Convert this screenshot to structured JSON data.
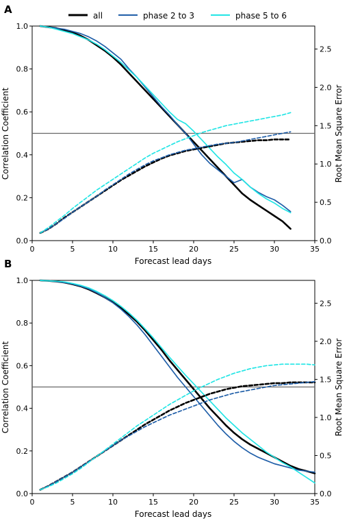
{
  "legend": {
    "placement": "top",
    "entries": [
      {
        "label": "all",
        "color": "#000000"
      },
      {
        "label": "phase 2 to 3",
        "color": "#1f5ea8"
      },
      {
        "label": "phase 5 to 6",
        "color": "#22e5e5"
      }
    ]
  },
  "chart_data": [
    {
      "panel": "A",
      "type": "line",
      "xlabel": "Forecast lead days",
      "ylabel": "Correlation Coefficient",
      "y2label": "Root Mean Square Error",
      "xlim": [
        0,
        35
      ],
      "ylim": [
        0,
        1.0
      ],
      "y2lim": [
        0,
        2.8
      ],
      "xticks": [
        0,
        5,
        10,
        15,
        20,
        25,
        30,
        35
      ],
      "yticks": [
        0.0,
        0.2,
        0.4,
        0.6,
        0.8,
        1.0
      ],
      "y2ticks": [
        0.0,
        0.5,
        1.0,
        1.5,
        2.0,
        2.5
      ],
      "reference_line": {
        "axis": "y",
        "value": 0.5,
        "color": "#666666"
      },
      "series": [
        {
          "name": "all",
          "metric": "correlation",
          "style": "solid",
          "color": "#000000",
          "x": [
            1,
            2,
            3,
            4,
            5,
            6,
            7,
            8,
            9,
            10,
            11,
            12,
            13,
            14,
            15,
            16,
            17,
            18,
            19,
            20,
            21,
            22,
            23,
            24,
            25,
            26,
            27,
            28,
            29,
            30,
            31,
            32
          ],
          "y": [
            1.0,
            0.995,
            0.99,
            0.98,
            0.97,
            0.955,
            0.935,
            0.91,
            0.885,
            0.855,
            0.82,
            0.78,
            0.74,
            0.7,
            0.66,
            0.62,
            0.58,
            0.54,
            0.5,
            0.46,
            0.42,
            0.38,
            0.34,
            0.3,
            0.26,
            0.22,
            0.19,
            0.165,
            0.14,
            0.115,
            0.09,
            0.055
          ]
        },
        {
          "name": "phase 2 to 3",
          "metric": "correlation",
          "style": "solid",
          "color": "#1f5ea8",
          "x": [
            1,
            2,
            3,
            4,
            5,
            6,
            7,
            8,
            9,
            10,
            11,
            12,
            13,
            14,
            15,
            16,
            17,
            18,
            19,
            20,
            21,
            22,
            23,
            24,
            25,
            26,
            27,
            28,
            29,
            30,
            31,
            32
          ],
          "y": [
            1.0,
            0.995,
            0.99,
            0.985,
            0.975,
            0.965,
            0.95,
            0.93,
            0.905,
            0.875,
            0.845,
            0.8,
            0.76,
            0.715,
            0.67,
            0.625,
            0.585,
            0.54,
            0.5,
            0.45,
            0.4,
            0.36,
            0.33,
            0.3,
            0.27,
            0.285,
            0.25,
            0.225,
            0.205,
            0.19,
            0.165,
            0.135
          ]
        },
        {
          "name": "phase 5 to 6",
          "metric": "correlation",
          "style": "solid",
          "color": "#22e5e5",
          "x": [
            1,
            2,
            3,
            4,
            5,
            6,
            7,
            8,
            9,
            10,
            11,
            12,
            13,
            14,
            15,
            16,
            17,
            18,
            19,
            20,
            21,
            22,
            23,
            24,
            25,
            26,
            27,
            28,
            29,
            30,
            31,
            32
          ],
          "y": [
            1.0,
            0.995,
            0.985,
            0.975,
            0.965,
            0.95,
            0.935,
            0.915,
            0.89,
            0.86,
            0.83,
            0.795,
            0.76,
            0.72,
            0.68,
            0.64,
            0.6,
            0.565,
            0.545,
            0.51,
            0.47,
            0.43,
            0.39,
            0.355,
            0.315,
            0.285,
            0.25,
            0.22,
            0.195,
            0.175,
            0.15,
            0.13
          ]
        },
        {
          "name": "all",
          "metric": "rmse",
          "axis": "y2",
          "style": "dashed",
          "color": "#000000",
          "x": [
            1,
            2,
            3,
            4,
            5,
            6,
            7,
            8,
            9,
            10,
            11,
            12,
            13,
            14,
            15,
            16,
            17,
            18,
            19,
            20,
            21,
            22,
            23,
            24,
            25,
            26,
            27,
            28,
            29,
            30,
            31,
            32
          ],
          "y": [
            0.1,
            0.15,
            0.22,
            0.3,
            0.37,
            0.44,
            0.51,
            0.58,
            0.65,
            0.72,
            0.79,
            0.85,
            0.91,
            0.97,
            1.02,
            1.07,
            1.11,
            1.14,
            1.17,
            1.19,
            1.21,
            1.23,
            1.25,
            1.27,
            1.28,
            1.29,
            1.3,
            1.31,
            1.31,
            1.32,
            1.32,
            1.32
          ]
        },
        {
          "name": "phase 2 to 3",
          "metric": "rmse",
          "axis": "y2",
          "style": "dashed",
          "color": "#1f5ea8",
          "x": [
            1,
            2,
            3,
            4,
            5,
            6,
            7,
            8,
            9,
            10,
            11,
            12,
            13,
            14,
            15,
            16,
            17,
            18,
            19,
            20,
            21,
            22,
            23,
            24,
            25,
            26,
            27,
            28,
            29,
            30,
            31,
            32
          ],
          "y": [
            0.1,
            0.15,
            0.22,
            0.29,
            0.37,
            0.44,
            0.51,
            0.58,
            0.66,
            0.73,
            0.8,
            0.87,
            0.93,
            0.99,
            1.04,
            1.08,
            1.12,
            1.15,
            1.18,
            1.2,
            1.22,
            1.24,
            1.26,
            1.27,
            1.28,
            1.3,
            1.32,
            1.34,
            1.36,
            1.38,
            1.4,
            1.42
          ]
        },
        {
          "name": "phase 5 to 6",
          "metric": "rmse",
          "axis": "y2",
          "style": "dashed",
          "color": "#22e5e5",
          "x": [
            1,
            2,
            3,
            4,
            5,
            6,
            7,
            8,
            9,
            10,
            11,
            12,
            13,
            14,
            15,
            16,
            17,
            18,
            19,
            20,
            21,
            22,
            23,
            24,
            25,
            26,
            27,
            28,
            29,
            30,
            31,
            32
          ],
          "y": [
            0.1,
            0.17,
            0.25,
            0.33,
            0.42,
            0.5,
            0.58,
            0.66,
            0.73,
            0.8,
            0.87,
            0.94,
            1.01,
            1.08,
            1.14,
            1.19,
            1.24,
            1.29,
            1.33,
            1.37,
            1.41,
            1.44,
            1.47,
            1.5,
            1.52,
            1.54,
            1.56,
            1.58,
            1.6,
            1.62,
            1.64,
            1.67
          ]
        }
      ]
    },
    {
      "panel": "B",
      "type": "line",
      "xlabel": "Forecast lead days",
      "ylabel": "Correlation Coefficient",
      "y2label": "Root Mean Square Error",
      "xlim": [
        0,
        35
      ],
      "ylim": [
        0,
        1.0
      ],
      "y2lim": [
        0,
        2.8
      ],
      "xticks": [
        0,
        5,
        10,
        15,
        20,
        25,
        30,
        35
      ],
      "yticks": [
        0.0,
        0.2,
        0.4,
        0.6,
        0.8,
        1.0
      ],
      "y2ticks": [
        0.0,
        0.5,
        1.0,
        1.5,
        2.0,
        2.5
      ],
      "reference_line": {
        "axis": "y",
        "value": 0.5,
        "color": "#666666"
      },
      "series": [
        {
          "name": "all",
          "metric": "correlation",
          "style": "solid",
          "color": "#000000",
          "x": [
            1,
            2,
            3,
            4,
            5,
            6,
            7,
            8,
            9,
            10,
            11,
            12,
            13,
            14,
            15,
            16,
            17,
            18,
            19,
            20,
            21,
            22,
            23,
            24,
            25,
            26,
            27,
            28,
            29,
            30,
            31,
            32,
            33,
            34,
            35
          ],
          "y": [
            1.0,
            0.998,
            0.995,
            0.99,
            0.982,
            0.972,
            0.958,
            0.94,
            0.92,
            0.897,
            0.87,
            0.84,
            0.805,
            0.765,
            0.72,
            0.675,
            0.625,
            0.58,
            0.535,
            0.49,
            0.445,
            0.4,
            0.36,
            0.32,
            0.285,
            0.255,
            0.23,
            0.21,
            0.19,
            0.17,
            0.15,
            0.13,
            0.115,
            0.105,
            0.095
          ]
        },
        {
          "name": "phase 2 to 3",
          "metric": "correlation",
          "style": "solid",
          "color": "#1f5ea8",
          "x": [
            1,
            2,
            3,
            4,
            5,
            6,
            7,
            8,
            9,
            10,
            11,
            12,
            13,
            14,
            15,
            16,
            17,
            18,
            19,
            20,
            21,
            22,
            23,
            24,
            25,
            26,
            27,
            28,
            29,
            30,
            31,
            32,
            33,
            34,
            35
          ],
          "y": [
            1.0,
            0.998,
            0.995,
            0.99,
            0.983,
            0.973,
            0.96,
            0.942,
            0.92,
            0.895,
            0.865,
            0.83,
            0.79,
            0.745,
            0.695,
            0.645,
            0.595,
            0.545,
            0.5,
            0.455,
            0.41,
            0.365,
            0.32,
            0.28,
            0.245,
            0.215,
            0.19,
            0.17,
            0.155,
            0.14,
            0.13,
            0.12,
            0.11,
            0.105,
            0.1
          ]
        },
        {
          "name": "phase 5 to 6",
          "metric": "correlation",
          "style": "solid",
          "color": "#22e5e5",
          "x": [
            1,
            2,
            3,
            4,
            5,
            6,
            7,
            8,
            9,
            10,
            11,
            12,
            13,
            14,
            15,
            16,
            17,
            18,
            19,
            20,
            21,
            22,
            23,
            24,
            25,
            26,
            27,
            28,
            29,
            30,
            31,
            32,
            33,
            34,
            35
          ],
          "y": [
            1.0,
            0.998,
            0.996,
            0.993,
            0.986,
            0.977,
            0.965,
            0.948,
            0.928,
            0.905,
            0.878,
            0.847,
            0.812,
            0.772,
            0.73,
            0.685,
            0.64,
            0.597,
            0.555,
            0.515,
            0.475,
            0.435,
            0.395,
            0.355,
            0.32,
            0.285,
            0.255,
            0.225,
            0.195,
            0.17,
            0.145,
            0.125,
            0.1,
            0.075,
            0.05
          ]
        },
        {
          "name": "all",
          "metric": "rmse",
          "axis": "y2",
          "style": "dashed",
          "color": "#000000",
          "x": [
            1,
            2,
            3,
            4,
            5,
            6,
            7,
            8,
            9,
            10,
            11,
            12,
            13,
            14,
            15,
            16,
            17,
            18,
            19,
            20,
            21,
            22,
            23,
            24,
            25,
            26,
            27,
            28,
            29,
            30,
            31,
            32,
            33,
            34,
            35
          ],
          "y": [
            0.05,
            0.1,
            0.16,
            0.22,
            0.28,
            0.35,
            0.42,
            0.49,
            0.56,
            0.63,
            0.7,
            0.77,
            0.84,
            0.91,
            0.97,
            1.03,
            1.09,
            1.14,
            1.19,
            1.23,
            1.27,
            1.31,
            1.34,
            1.37,
            1.39,
            1.41,
            1.42,
            1.43,
            1.44,
            1.45,
            1.45,
            1.46,
            1.46,
            1.46,
            1.46
          ]
        },
        {
          "name": "phase 2 to 3",
          "metric": "rmse",
          "axis": "y2",
          "style": "dashed",
          "color": "#1f5ea8",
          "x": [
            1,
            2,
            3,
            4,
            5,
            6,
            7,
            8,
            9,
            10,
            11,
            12,
            13,
            14,
            15,
            16,
            17,
            18,
            19,
            20,
            21,
            22,
            23,
            24,
            25,
            26,
            27,
            28,
            29,
            30,
            31,
            32,
            33,
            34,
            35
          ],
          "y": [
            0.05,
            0.1,
            0.16,
            0.22,
            0.28,
            0.35,
            0.42,
            0.49,
            0.56,
            0.63,
            0.7,
            0.76,
            0.82,
            0.88,
            0.93,
            0.98,
            1.03,
            1.07,
            1.11,
            1.15,
            1.19,
            1.23,
            1.26,
            1.29,
            1.32,
            1.34,
            1.36,
            1.38,
            1.4,
            1.42,
            1.43,
            1.44,
            1.45,
            1.46,
            1.47
          ]
        },
        {
          "name": "phase 5 to 6",
          "metric": "rmse",
          "axis": "y2",
          "style": "dashed",
          "color": "#22e5e5",
          "x": [
            1,
            2,
            3,
            4,
            5,
            6,
            7,
            8,
            9,
            10,
            11,
            12,
            13,
            14,
            15,
            16,
            17,
            18,
            19,
            20,
            21,
            22,
            23,
            24,
            25,
            26,
            27,
            28,
            29,
            30,
            31,
            32,
            33,
            34,
            35
          ],
          "y": [
            0.05,
            0.09,
            0.14,
            0.2,
            0.26,
            0.33,
            0.41,
            0.49,
            0.57,
            0.65,
            0.73,
            0.81,
            0.89,
            0.96,
            1.03,
            1.1,
            1.17,
            1.23,
            1.29,
            1.35,
            1.4,
            1.45,
            1.5,
            1.54,
            1.58,
            1.61,
            1.64,
            1.66,
            1.68,
            1.69,
            1.7,
            1.7,
            1.7,
            1.7,
            1.69
          ]
        }
      ]
    }
  ]
}
